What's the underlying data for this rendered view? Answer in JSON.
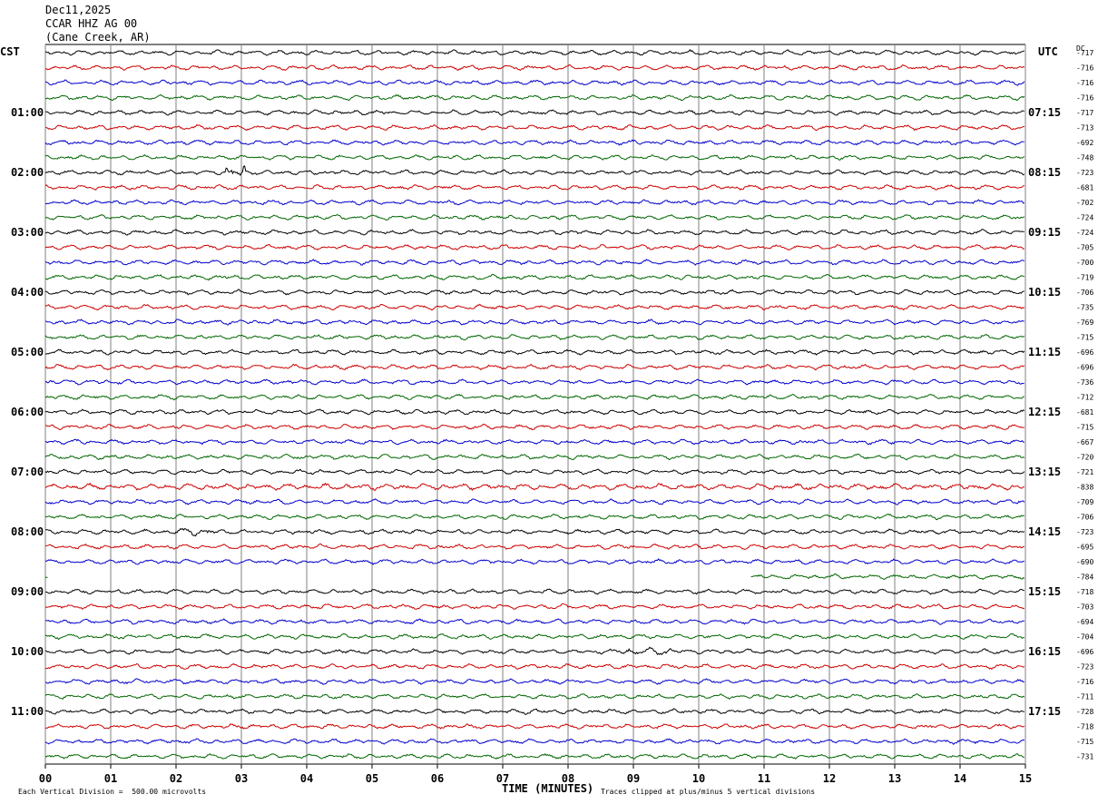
{
  "header": {
    "date": "Dec11,2025",
    "station": "CCAR HHZ AG 00",
    "location": "(Cane Creek, AR)"
  },
  "labels": {
    "left_zone": "CST",
    "right_zone": "UTC",
    "dc_header": "DC",
    "x_axis": "TIME (MINUTES)",
    "scale_note": "Each Vertical Division =  500.00 microvolts",
    "clip_note": "Traces clipped at plus/minus 5 vertical divisions"
  },
  "colors": {
    "cycle": [
      "#000000",
      "#cc0000",
      "#0000cc",
      "#006600"
    ],
    "grid": "#808080"
  },
  "chart_data": {
    "type": "line",
    "title": "CCAR HHZ AG 00",
    "xlabel": "TIME (MINUTES)",
    "xlim": [
      0,
      15
    ],
    "x_ticks": [
      "00",
      "01",
      "02",
      "03",
      "04",
      "05",
      "06",
      "07",
      "08",
      "09",
      "10",
      "11",
      "12",
      "13",
      "14",
      "15"
    ],
    "left_hour_labels": [
      "01:00",
      "02:00",
      "03:00",
      "04:00",
      "05:00",
      "06:00",
      "07:00",
      "08:00",
      "09:00",
      "10:00",
      "11:00"
    ],
    "right_hour_labels": [
      "07:15",
      "08:15",
      "09:15",
      "10:15",
      "11:15",
      "12:15",
      "13:15",
      "14:15",
      "15:15",
      "16:15",
      "17:15"
    ],
    "trace_interval_minutes": 15,
    "dc_offsets": [
      "-717",
      "-716",
      "-716",
      "-716",
      "-717",
      "-713",
      "-692",
      "-748",
      "-723",
      "-681",
      "-702",
      "-724",
      "-724",
      "-705",
      "-700",
      "-719",
      "-706",
      "-735",
      "-769",
      "-715",
      "-696",
      "-696",
      "-736",
      "-712",
      "-681",
      "-715",
      "-667",
      "-720",
      "-721",
      "-838",
      "-709",
      "-706",
      "-723",
      "-695",
      "-690",
      "-784",
      "-718",
      "-703",
      "-694",
      "-704",
      "-696",
      "-723",
      "-716",
      "-711",
      "-728",
      "-718",
      "-715",
      "-731"
    ],
    "gap": {
      "trace_index": 35,
      "start_minute": 0.05,
      "end_minute": 10.8
    },
    "events": [
      {
        "trace_index": 8,
        "start_minute": 2.75,
        "end_minute": 3.05,
        "amp": 3.5
      },
      {
        "trace_index": 22,
        "start_minute": 6.9,
        "end_minute": 9.3,
        "amp": 0.9
      },
      {
        "trace_index": 29,
        "start_minute": 0.0,
        "end_minute": 15.0,
        "amp": 1.3
      },
      {
        "trace_index": 32,
        "start_minute": 2.0,
        "end_minute": 2.6,
        "amp": 1.6
      },
      {
        "trace_index": 40,
        "start_minute": 8.9,
        "end_minute": 9.6,
        "amp": 1.8
      },
      {
        "trace_index": 44,
        "start_minute": 7.2,
        "end_minute": 7.7,
        "amp": 1.3
      }
    ]
  }
}
